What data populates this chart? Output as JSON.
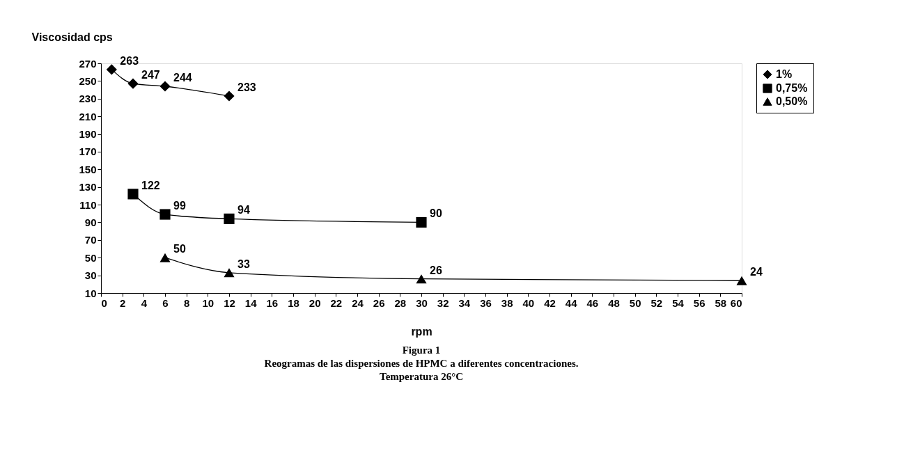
{
  "chart_data": {
    "type": "line",
    "ylabel": "Viscosidad cps",
    "xlabel": "rpm",
    "annotations": [
      "Figura 1",
      "Reogramas de las dispersiones de HPMC a diferentes concentraciones.",
      "Temperatura 26°C"
    ],
    "xlim": [
      0,
      60
    ],
    "xticks": [
      0,
      2,
      4,
      6,
      8,
      10,
      12,
      14,
      16,
      18,
      20,
      22,
      24,
      26,
      28,
      30,
      32,
      34,
      36,
      38,
      40,
      42,
      44,
      46,
      48,
      50,
      52,
      54,
      56,
      58,
      60
    ],
    "ylim": [
      10,
      270
    ],
    "yticks": [
      10,
      30,
      50,
      70,
      90,
      110,
      130,
      150,
      170,
      190,
      210,
      230,
      250,
      270
    ],
    "grid": false,
    "legend": "right",
    "data_labels": true,
    "line_style": "solid",
    "series": [
      {
        "name": "1%",
        "color": "#000000",
        "marker": "diamond",
        "x": [
          1,
          3,
          6,
          12
        ],
        "values": [
          263,
          247,
          244,
          233
        ]
      },
      {
        "name": "0,75%",
        "color": "#000000",
        "marker": "square",
        "x": [
          3,
          6,
          12,
          30
        ],
        "values": [
          122,
          99,
          94,
          90
        ]
      },
      {
        "name": "0,50%",
        "color": "#000000",
        "marker": "triangle",
        "x": [
          6,
          12,
          30,
          60
        ],
        "values": [
          50,
          33,
          26,
          24
        ]
      }
    ]
  }
}
